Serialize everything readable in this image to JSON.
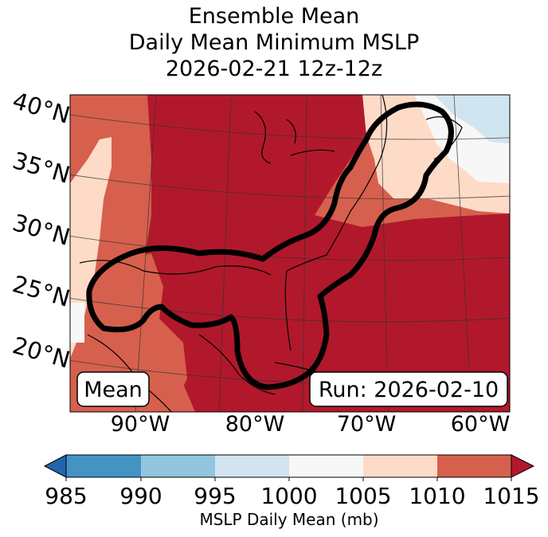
{
  "title": {
    "line1": "Ensemble Mean",
    "line2": "Daily Mean Minimum MSLP",
    "line3": "2026-02-21 12z-12z"
  },
  "map": {
    "lat_labels": [
      "40°N",
      "35°N",
      "30°N",
      "25°N",
      "20°N"
    ],
    "lon_labels": [
      "90°W",
      "80°W",
      "70°W",
      "60°W"
    ],
    "mean_box": "Mean",
    "run_box": "Run: 2026-02-10"
  },
  "colorbar": {
    "ticks": [
      "985",
      "990",
      "995",
      "1000",
      "1005",
      "1010",
      "1015"
    ],
    "label": "MSLP Daily Mean (mb)",
    "colors": {
      "under": "#2166ac",
      "c985_990": "#4393c3",
      "c990_995": "#92c5de",
      "c995_1000": "#d1e5f0",
      "c1000_1005": "#f7f7f7",
      "c1005_1010": "#fddbc7",
      "c1010_1015": "#d6604d",
      "over": "#b2182b"
    }
  }
}
